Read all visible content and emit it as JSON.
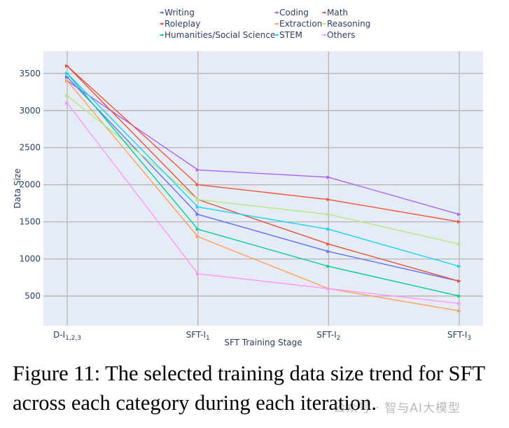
{
  "chart_data": {
    "type": "line",
    "categories": [
      "D-I",
      "SFT-I",
      "SFT-I",
      "SFT-I"
    ],
    "category_subscripts": [
      "1,2,3",
      "1",
      "2",
      "3"
    ],
    "xlabel": "SFT Training Stage",
    "ylabel": "Data Size",
    "ylim": [
      100,
      3800
    ],
    "yticks": [
      500,
      1000,
      1500,
      2000,
      2500,
      3000,
      3500
    ],
    "grid": true,
    "legend_position": "top",
    "series": [
      {
        "name": "Writing",
        "color": "#636efa",
        "values": [
          3450,
          1600,
          1100,
          700
        ]
      },
      {
        "name": "Coding",
        "color": "#ab63fa",
        "values": [
          3400,
          2200,
          2100,
          1600
        ]
      },
      {
        "name": "Math",
        "color": "#ef553b",
        "values": [
          3600,
          2000,
          1800,
          1500
        ]
      },
      {
        "name": "Roleplay",
        "color": "#e45339",
        "values": [
          3600,
          1800,
          1200,
          700
        ]
      },
      {
        "name": "Extraction",
        "color": "#ffa15a",
        "values": [
          3400,
          1300,
          600,
          300
        ]
      },
      {
        "name": "Reasoning",
        "color": "#b6e880",
        "values": [
          3200,
          1800,
          1600,
          1200
        ]
      },
      {
        "name": "Humanities/Social Science",
        "color": "#00cc96",
        "values": [
          3500,
          1400,
          900,
          500
        ]
      },
      {
        "name": "STEM",
        "color": "#19d3f3",
        "values": [
          3500,
          1700,
          1400,
          900
        ]
      },
      {
        "name": "Others",
        "color": "#ff97ff",
        "values": [
          3100,
          800,
          600,
          400
        ]
      }
    ]
  },
  "caption": "Figure 11: The selected training data size trend for SFT across each category during each iteration.",
  "watermark": "公众号 · 智与AI大模型"
}
